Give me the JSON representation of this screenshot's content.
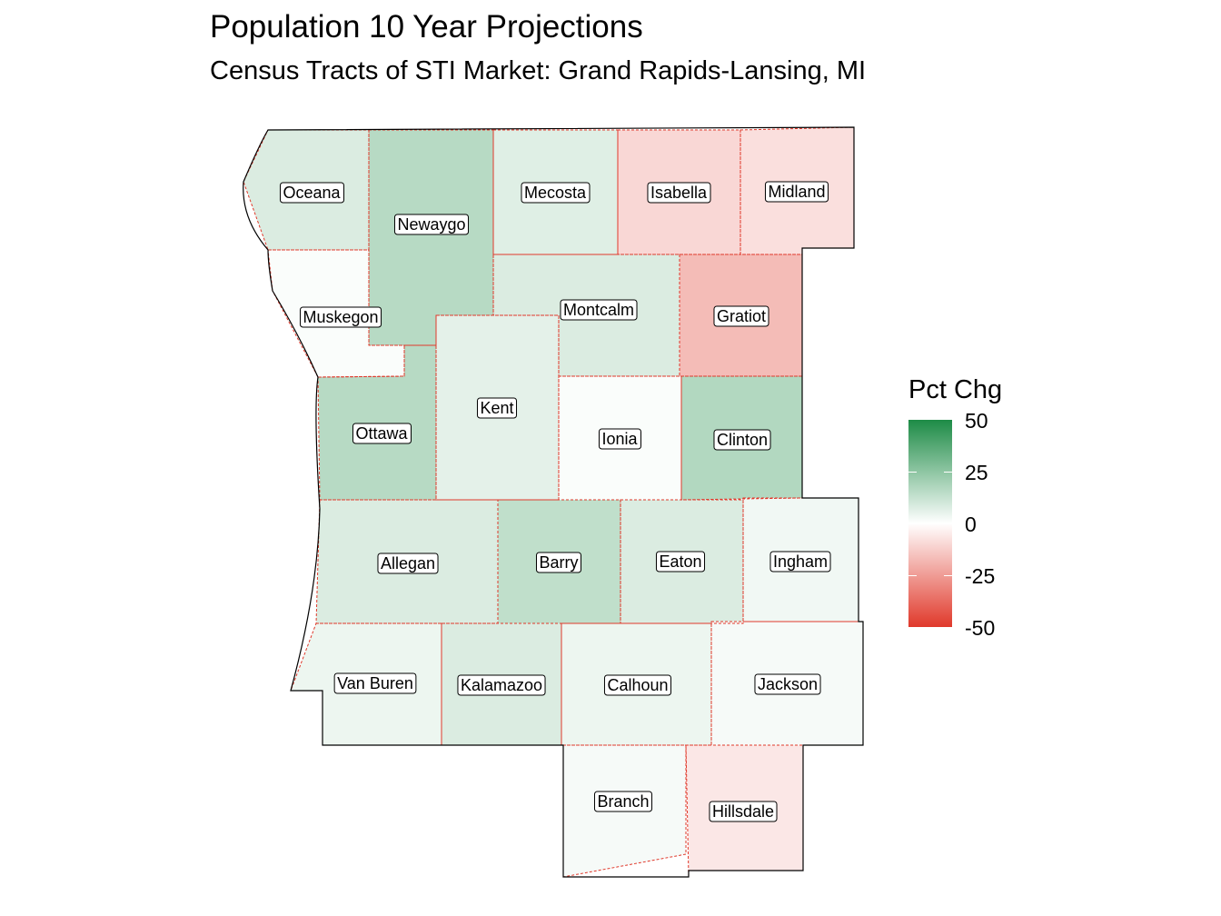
{
  "title": "Population 10 Year Projections",
  "subtitle": "Census Tracts of STI Market: Grand Rapids-Lansing, MI",
  "legend": {
    "title": "Pct Chg",
    "ticks": [
      "50",
      "25",
      "0",
      "-25",
      "-50"
    ],
    "range": [
      -50,
      50
    ],
    "colors": {
      "high": "#1d8b46",
      "mid": "#ffffff",
      "low": "#e0392b"
    }
  },
  "counties": [
    {
      "name": "Oceana",
      "pct_chg": 8
    },
    {
      "name": "Newaygo",
      "pct_chg": 16
    },
    {
      "name": "Mecosta",
      "pct_chg": 7
    },
    {
      "name": "Isabella",
      "pct_chg": -10
    },
    {
      "name": "Midland",
      "pct_chg": -8
    },
    {
      "name": "Muskegon",
      "pct_chg": 1
    },
    {
      "name": "Montcalm",
      "pct_chg": 8
    },
    {
      "name": "Gratiot",
      "pct_chg": -17
    },
    {
      "name": "Kent",
      "pct_chg": 6
    },
    {
      "name": "Ottawa",
      "pct_chg": 16
    },
    {
      "name": "Ionia",
      "pct_chg": 1
    },
    {
      "name": "Clinton",
      "pct_chg": 17
    },
    {
      "name": "Allegan",
      "pct_chg": 8
    },
    {
      "name": "Barry",
      "pct_chg": 14
    },
    {
      "name": "Eaton",
      "pct_chg": 8
    },
    {
      "name": "Ingham",
      "pct_chg": 3
    },
    {
      "name": "Van Buren",
      "pct_chg": 4
    },
    {
      "name": "Kalamazoo",
      "pct_chg": 8
    },
    {
      "name": "Calhoun",
      "pct_chg": 4
    },
    {
      "name": "Jackson",
      "pct_chg": 2
    },
    {
      "name": "Branch",
      "pct_chg": 2
    },
    {
      "name": "Hillsdale",
      "pct_chg": -6
    }
  ]
}
